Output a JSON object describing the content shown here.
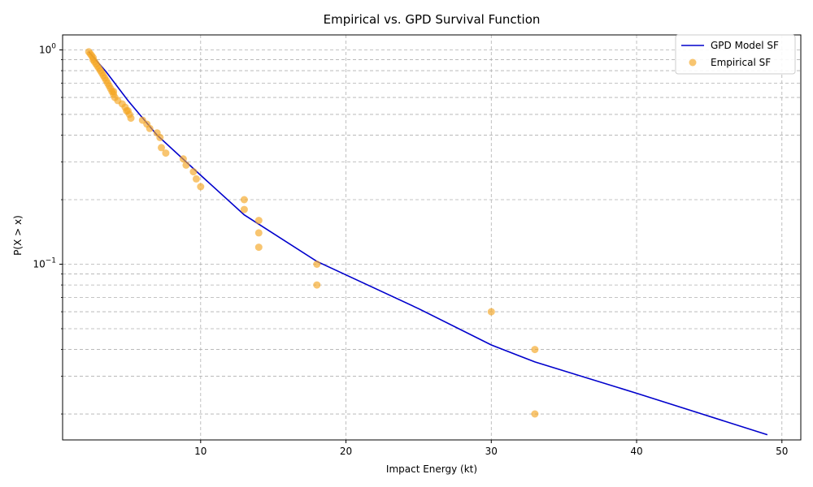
{
  "chart_data": {
    "type": "line+scatter",
    "title": "Empirical vs. GPD Survival Function",
    "xlabel": "Impact Energy (kt)",
    "ylabel": "P(X > x)",
    "xlim": [
      0.5,
      51.3
    ],
    "ylim_log10": [
      -1.82,
      0.07
    ],
    "y_scale": "log",
    "grid": true,
    "legend_position": "top-right",
    "x_ticks": [
      {
        "value": 10,
        "label": "10"
      },
      {
        "value": 20,
        "label": "20"
      },
      {
        "value": 30,
        "label": "30"
      },
      {
        "value": 40,
        "label": "40"
      },
      {
        "value": 50,
        "label": "50"
      }
    ],
    "y_major_ticks": [
      {
        "value": 0.1,
        "base": "10",
        "exp": "−1"
      },
      {
        "value": 1,
        "base": "10",
        "exp": "0"
      }
    ],
    "y_minor_ticks": [
      0.02,
      0.03,
      0.04,
      0.05,
      0.06,
      0.07,
      0.08,
      0.09,
      0.2,
      0.3,
      0.4,
      0.5,
      0.6,
      0.7,
      0.8,
      0.9
    ],
    "colors": {
      "model_line": "#0000cc",
      "empirical": "#f5a623",
      "grid": "#b0b0b0"
    },
    "series": [
      {
        "name": "GPD Model SF",
        "kind": "line",
        "x": [
          2.3,
          3.5,
          5,
          7,
          10,
          13,
          18,
          25,
          30,
          33,
          40,
          49
        ],
        "y": [
          0.98,
          0.79,
          0.58,
          0.4,
          0.26,
          0.17,
          0.103,
          0.062,
          0.042,
          0.035,
          0.025,
          0.016
        ]
      },
      {
        "name": "Empirical SF",
        "kind": "scatter",
        "x": [
          2.3,
          2.4,
          2.5,
          2.6,
          2.6,
          2.7,
          2.8,
          2.9,
          3.0,
          3.1,
          3.2,
          3.3,
          3.4,
          3.5,
          3.6,
          3.7,
          3.8,
          3.9,
          4.0,
          4.0,
          4.1,
          4.3,
          4.6,
          4.8,
          4.9,
          5.0,
          5.1,
          5.2,
          6.0,
          6.3,
          6.5,
          7.0,
          7.2,
          7.3,
          7.6,
          8.8,
          9.0,
          9.5,
          9.7,
          10.0,
          13.0,
          13.0,
          14.0,
          14.0,
          14.0,
          18.0,
          18.0,
          30.0,
          33.0,
          33.0
        ],
        "y": [
          0.98,
          0.96,
          0.94,
          0.92,
          0.9,
          0.88,
          0.86,
          0.84,
          0.82,
          0.8,
          0.78,
          0.76,
          0.74,
          0.72,
          0.7,
          0.68,
          0.66,
          0.64,
          0.64,
          0.62,
          0.6,
          0.58,
          0.56,
          0.54,
          0.52,
          0.52,
          0.5,
          0.48,
          0.47,
          0.45,
          0.43,
          0.41,
          0.39,
          0.35,
          0.33,
          0.31,
          0.29,
          0.27,
          0.25,
          0.23,
          0.2,
          0.18,
          0.16,
          0.14,
          0.12,
          0.1,
          0.08,
          0.06,
          0.04,
          0.02
        ]
      }
    ]
  }
}
